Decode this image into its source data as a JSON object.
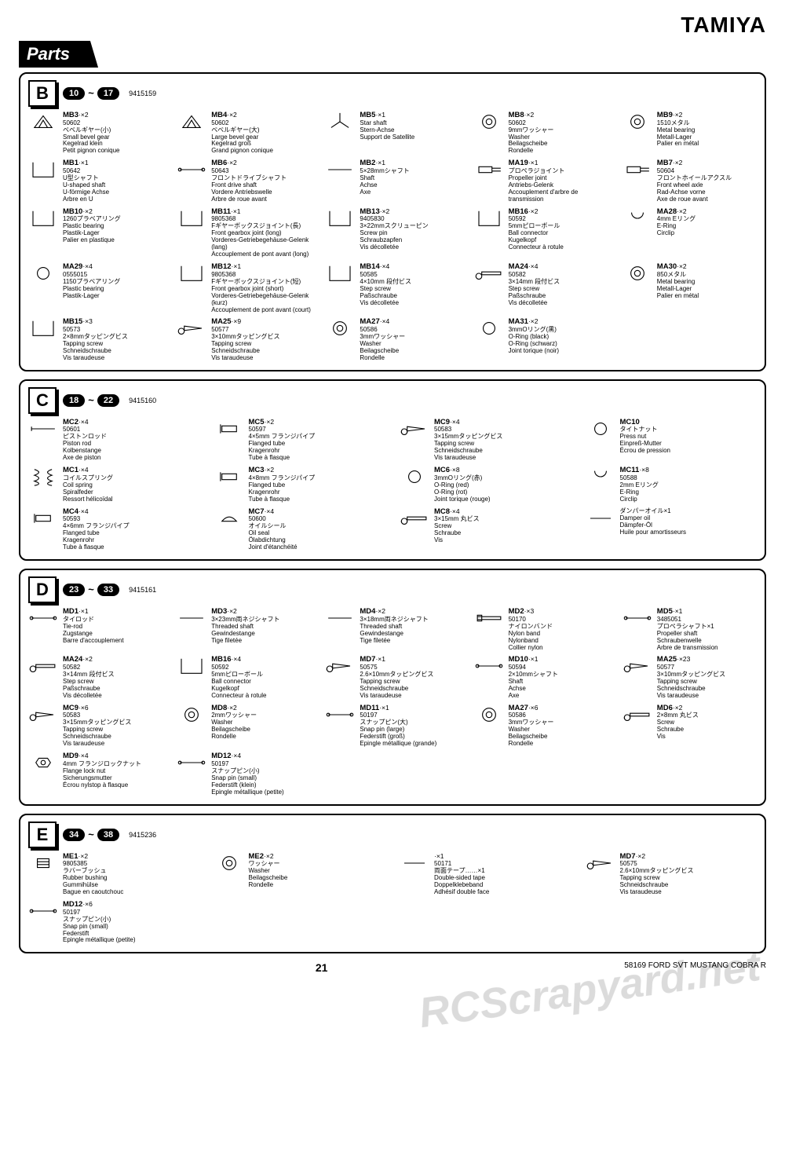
{
  "brand": "TAMIYA",
  "page_title": "Parts",
  "page_number": "21",
  "doc_code": "58169 FORD SVT MUSTANG COBRA R",
  "watermark": "RCScrapyard.net",
  "sections": [
    {
      "id": "B",
      "bag": "9415159",
      "range": [
        "10",
        "17"
      ],
      "items": [
        {
          "pid": "MB3",
          "qty": "×2",
          "pnum": "50602",
          "desc": [
            "ベベルギヤー(小)",
            "Small bevel gear",
            "Kegelrad klein",
            "Petit pignon conique"
          ]
        },
        {
          "pid": "MB4",
          "qty": "×2",
          "pnum": "50602",
          "desc": [
            "ベベルギヤー(大)",
            "Large bevel gear",
            "Kegelrad groß",
            "Grand pignon conique"
          ]
        },
        {
          "pid": "MB5",
          "qty": "×1",
          "pnum": "",
          "desc": [
            "Star shaft",
            "Stern-Achse",
            "Support de Satellite"
          ]
        },
        {
          "pid": "MB8",
          "qty": "×2",
          "pnum": "50602",
          "desc": [
            "9mmワッシャー",
            "Washer",
            "Beilagscheibe",
            "Rondelle"
          ]
        },
        {
          "pid": "MB9",
          "qty": "×2",
          "pnum": "",
          "desc": [
            "1510メタル",
            "Metal bearing",
            "Metall-Lager",
            "Palier en métal"
          ]
        },
        {
          "pid": "MB1",
          "qty": "×1",
          "pnum": "50642",
          "desc": [
            "U型シャフト",
            "U-shaped shaft",
            "U-förmige Achse",
            "Arbre en U"
          ]
        },
        {
          "pid": "MB6",
          "qty": "×2",
          "pnum": "50643",
          "desc": [
            "フロントドライブシャフト",
            "Front drive shaft",
            "Vordere Antriebswelle",
            "Arbre de roue avant"
          ]
        },
        {
          "pid": "MB2",
          "qty": "×1",
          "pnum": "",
          "desc": [
            "5×28mmシャフト",
            "Shaft",
            "Achse",
            "Axe"
          ]
        },
        {
          "pid": "MA19",
          "qty": "×1",
          "pnum": "",
          "desc": [
            "プロペラジョイント",
            "Propeller joint",
            "Antriebs-Gelenk",
            "Accouplement d'arbre de transmission"
          ]
        },
        {
          "pid": "MB7",
          "qty": "×2",
          "pnum": "50604",
          "desc": [
            "フロントホイールアクスル",
            "Front wheel axle",
            "Rad-Achse vorne",
            "Axe de roue avant"
          ]
        },
        {
          "pid": "MB10",
          "qty": "×2",
          "pnum": "",
          "desc": [
            "1260プラベアリング",
            "Plastic bearing",
            "Plastik-Lager",
            "Palier en plastique"
          ]
        },
        {
          "pid": "MB11",
          "qty": "×1",
          "pnum": "9805368",
          "desc": [
            "Fギヤーボックスジョイント(長)",
            "Front gearbox joint (long)",
            "Vorderes-Getriebegehäuse-Gelenk (lang)",
            "Accouplement de pont avant (long)"
          ]
        },
        {
          "pid": "MB13",
          "qty": "×2",
          "pnum": "9405830",
          "desc": [
            "3×22mmスクリューピン",
            "Screw pin",
            "Schraubzapfen",
            "Vis décolletée"
          ]
        },
        {
          "pid": "MB16",
          "qty": "×2",
          "pnum": "50592",
          "desc": [
            "5mmピローボール",
            "Ball connector",
            "Kugelkopf",
            "Connecteur à rotule"
          ]
        },
        {
          "pid": "MA28",
          "qty": "×2",
          "pnum": "",
          "desc": [
            "4mm Eリング",
            "E-Ring",
            "Circlip"
          ]
        },
        {
          "pid": "MA29",
          "qty": "×4",
          "pnum": "0555015",
          "desc": [
            "1150プラベアリング",
            "Plastic bearing",
            "Plastik-Lager"
          ]
        },
        {
          "pid": "MB12",
          "qty": "×1",
          "pnum": "9805368",
          "desc": [
            "Fギヤーボックスジョイント(短)",
            "Front gearbox joint (short)",
            "Vorderes-Getriebegehäuse-Gelenk (kurz)",
            "Accouplement de pont avant (court)"
          ]
        },
        {
          "pid": "MB14",
          "qty": "×4",
          "pnum": "50585",
          "desc": [
            "4×10mm 段付ビス",
            "Step screw",
            "Paßschraube",
            "Vis décolletée"
          ]
        },
        {
          "pid": "MA24",
          "qty": "×4",
          "pnum": "50582",
          "desc": [
            "3×14mm 段付ビス",
            "Step screw",
            "Paßschraube",
            "Vis décolletée"
          ]
        },
        {
          "pid": "MA30",
          "qty": "×2",
          "pnum": "",
          "desc": [
            "850メタル",
            "Metal bearing",
            "Metall-Lager",
            "Palier en métal"
          ]
        },
        {
          "pid": "MB15",
          "qty": "×3",
          "pnum": "50573",
          "desc": [
            "2×8mmタッピングビス",
            "Tapping screw",
            "Schneidschraube",
            "Vis taraudeuse"
          ]
        },
        {
          "pid": "MA25",
          "qty": "×9",
          "pnum": "50577",
          "desc": [
            "3×10mmタッピングビス",
            "Tapping screw",
            "Schneidschraube",
            "Vis taraudeuse"
          ]
        },
        {
          "pid": "MA27",
          "qty": "×4",
          "pnum": "50586",
          "desc": [
            "3mmワッシャー",
            "Washer",
            "Beilagscheibe",
            "Rondelle"
          ]
        },
        {
          "pid": "MA31",
          "qty": "×2",
          "pnum": "",
          "desc": [
            "3mmOリング(黒)",
            "O-Ring (black)",
            "O-Ring (schwarz)",
            "Joint torique (noir)"
          ]
        }
      ]
    },
    {
      "id": "C",
      "bag": "9415160",
      "range": [
        "18",
        "22"
      ],
      "items": [
        {
          "pid": "MC2",
          "qty": "×4",
          "pnum": "50601",
          "desc": [
            "ピストンロッド",
            "Piston rod",
            "Kolbenstange",
            "Axe de piston"
          ]
        },
        {
          "pid": "MC5",
          "qty": "×2",
          "pnum": "50597",
          "desc": [
            "4×5mm フランジパイプ",
            "Flanged tube",
            "Kragenrohr",
            "Tube à flasque"
          ]
        },
        {
          "pid": "MC9",
          "qty": "×4",
          "pnum": "50583",
          "desc": [
            "3×15mmタッピングビス",
            "Tapping screw",
            "Schneidschraube",
            "Vis taraudeuse"
          ]
        },
        {
          "pid": "MC10",
          "qty": "",
          "pnum": "",
          "desc": [
            "タイトナット",
            "Press nut",
            "Einpreß-Mutter",
            "Écrou de pression"
          ]
        },
        {
          "pid": "MC1",
          "qty": "×4",
          "pnum": "",
          "desc": [
            "コイルスプリング",
            "Coil spring",
            "Spiralfeder",
            "Ressort hélicoïdal"
          ]
        },
        {
          "pid": "MC3",
          "qty": "×2",
          "pnum": "",
          "desc": [
            "4×8mm フランジパイプ",
            "Flanged tube",
            "Kragenrohr",
            "Tube à flasque"
          ]
        },
        {
          "pid": "MC6",
          "qty": "×8",
          "pnum": "",
          "desc": [
            "3mmOリング(赤)",
            "O-Ring (red)",
            "O-Ring (rot)",
            "Joint torique (rouge)"
          ]
        },
        {
          "pid": "MC11",
          "qty": "×8",
          "pnum": "50588",
          "desc": [
            "2mm Eリング",
            "E-Ring",
            "Circlip"
          ]
        },
        {
          "pid": "MC4",
          "qty": "×4",
          "pnum": "50593",
          "desc": [
            "4×6mm フランジパイプ",
            "Flanged tube",
            "Kragenrohr",
            "Tube à flasque"
          ]
        },
        {
          "pid": "MC7",
          "qty": "×4",
          "pnum": "50600",
          "desc": [
            "オイルシール",
            "Oil seal",
            "Ölabdichtung",
            "Joint d'étanchéité"
          ]
        },
        {
          "pid": "MC8",
          "qty": "×4",
          "pnum": "",
          "desc": [
            "3×15mm 丸ビス",
            "Screw",
            "Schraube",
            "Vis"
          ]
        },
        {
          "pid": "",
          "qty": "",
          "pnum": "",
          "desc": [
            "ダンパーオイル×1",
            "Damper oil",
            "Dämpfer-Öl",
            "Huile pour amortisseurs"
          ]
        }
      ]
    },
    {
      "id": "D",
      "bag": "9415161",
      "range": [
        "23",
        "33"
      ],
      "items": [
        {
          "pid": "MD1",
          "qty": "×1",
          "pnum": "",
          "desc": [
            "タイロッド",
            "Tie-rod",
            "Zugstange",
            "Barre d'accouplement"
          ]
        },
        {
          "pid": "MD3",
          "qty": "×2",
          "pnum": "",
          "desc": [
            "3×23mm両ネジシャフト",
            "Threaded shaft",
            "Gewindestange",
            "Tige filetée"
          ]
        },
        {
          "pid": "MD4",
          "qty": "×2",
          "pnum": "",
          "desc": [
            "3×18mm両ネジシャフト",
            "Threaded shaft",
            "Gewindestange",
            "Tige filetée"
          ]
        },
        {
          "pid": "MD2",
          "qty": "×3",
          "pnum": "50170",
          "desc": [
            "ナイロンバンド",
            "Nylon band",
            "Nylonband",
            "Collier nylon"
          ]
        },
        {
          "pid": "MD5",
          "qty": "×1",
          "pnum": "3485051",
          "desc": [
            "プロペラシャフト×1",
            "Propeller shaft",
            "Schraubenwelle",
            "Arbre de transmission"
          ]
        },
        {
          "pid": "MA24",
          "qty": "×2",
          "pnum": "50582",
          "desc": [
            "3×14mm 段付ビス",
            "Step screw",
            "Paßschraube",
            "Vis décolletée"
          ]
        },
        {
          "pid": "MB16",
          "qty": "×4",
          "pnum": "50592",
          "desc": [
            "5mmピローボール",
            "Ball connector",
            "Kugelkopf",
            "Connecteur à rotule"
          ]
        },
        {
          "pid": "MD7",
          "qty": "×1",
          "pnum": "50575",
          "desc": [
            "2.6×10mmタッピングビス",
            "Tapping screw",
            "Schneidschraube",
            "Vis taraudeuse"
          ]
        },
        {
          "pid": "MD10",
          "qty": "×1",
          "pnum": "50594",
          "desc": [
            "2×10mmシャフト",
            "Shaft",
            "Achse",
            "Axe"
          ]
        },
        {
          "pid": "MA25",
          "qty": "×23",
          "pnum": "50577",
          "desc": [
            "3×10mmタッピングビス",
            "Tapping screw",
            "Schneidschraube",
            "Vis taraudeuse"
          ]
        },
        {
          "pid": "MC9",
          "qty": "×6",
          "pnum": "50583",
          "desc": [
            "3×15mmタッピングビス",
            "Tapping screw",
            "Schneidschraube",
            "Vis taraudeuse"
          ]
        },
        {
          "pid": "MD8",
          "qty": "×2",
          "pnum": "",
          "desc": [
            "2mmワッシャー",
            "Washer",
            "Beilagscheibe",
            "Rondelle"
          ]
        },
        {
          "pid": "MD11",
          "qty": "×1",
          "pnum": "50197",
          "desc": [
            "スナップピン(大)",
            "Snap pin (large)",
            "Federstift (groß)",
            "Epingle métallique (grande)"
          ]
        },
        {
          "pid": "MA27",
          "qty": "×6",
          "pnum": "50586",
          "desc": [
            "3mmワッシャー",
            "Washer",
            "Beilagscheibe",
            "Rondelle"
          ]
        },
        {
          "pid": "MD6",
          "qty": "×2",
          "pnum": "",
          "desc": [
            "2×8mm 丸ビス",
            "Screw",
            "Schraube",
            "Vis"
          ]
        },
        {
          "pid": "MD9",
          "qty": "×4",
          "pnum": "",
          "desc": [
            "4mm フランジロックナット",
            "Flange lock nut",
            "Sicherungsmutter",
            "Écrou nylstop à flasque"
          ]
        },
        {
          "pid": "MD12",
          "qty": "×4",
          "pnum": "50197",
          "desc": [
            "スナップピン(小)",
            "Snap pin (small)",
            "Federstift (klein)",
            "Epingle métallique (petite)"
          ]
        }
      ]
    },
    {
      "id": "E",
      "bag": "9415236",
      "range": [
        "34",
        "38"
      ],
      "items": [
        {
          "pid": "ME1",
          "qty": "×2",
          "pnum": "9805385",
          "desc": [
            "ラバーブッシュ",
            "Rubber bushing",
            "Gummihülse",
            "Bague en caoutchouc"
          ]
        },
        {
          "pid": "ME2",
          "qty": "×2",
          "pnum": "",
          "desc": [
            "ワッシャー",
            "Washer",
            "Beilagscheibe",
            "Rondelle"
          ]
        },
        {
          "pid": "",
          "qty": "×1",
          "pnum": "50171",
          "desc": [
            "両面テープ……×1",
            "Double-sided tape",
            "Doppelklebeband",
            "Adhésif double face"
          ]
        },
        {
          "pid": "MD7",
          "qty": "×2",
          "pnum": "50575",
          "desc": [
            "2.6×10mmタッピングビス",
            "Tapping screw",
            "Schneidschraube",
            "Vis taraudeuse"
          ]
        },
        {
          "pid": "MD12",
          "qty": "×6",
          "pnum": "50197",
          "desc": [
            "スナップピン(小)",
            "Snap pin (small)",
            "Federstift",
            "Epingle métallique (petite)"
          ]
        }
      ]
    }
  ]
}
